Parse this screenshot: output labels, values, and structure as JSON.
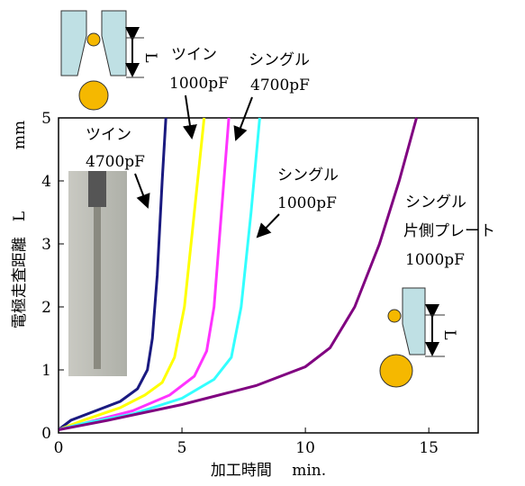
{
  "chart_data": {
    "type": "line",
    "x_label": "加工時間　 min.",
    "y_label": "電極走査距離　L",
    "y_unit": "mm",
    "diagram_label": "L",
    "xlim": [
      0,
      17
    ],
    "xticks": [
      0,
      5,
      10,
      15
    ],
    "ylim": [
      0,
      5
    ],
    "yticks": [
      0,
      1,
      2,
      3,
      4,
      5
    ],
    "annotations": [
      [
        "ツイン",
        "4700pF"
      ],
      [
        "ツイン",
        "1000pF"
      ],
      [
        "シングル",
        "4700pF"
      ],
      [
        "シングル",
        "1000pF"
      ],
      [
        "シングル",
        "片側プレート",
        "1000pF"
      ]
    ],
    "series": [
      {
        "color": "#1a1a80",
        "x": [
          0,
          0.5,
          1.5,
          2.5,
          3.2,
          3.6,
          3.8,
          4.0,
          4.2,
          4.35
        ],
        "values": [
          0.05,
          0.2,
          0.35,
          0.5,
          0.7,
          1.0,
          1.5,
          2.5,
          4,
          5
        ]
      },
      {
        "color": "#ffff00",
        "x": [
          0,
          1,
          2.5,
          3.5,
          4.2,
          4.7,
          5.1,
          5.5,
          5.9
        ],
        "values": [
          0.05,
          0.2,
          0.4,
          0.6,
          0.8,
          1.2,
          2,
          3.5,
          5
        ]
      },
      {
        "color": "#ff33ff",
        "x": [
          0,
          1,
          3,
          4.5,
          5.5,
          6,
          6.3,
          6.6,
          6.9
        ],
        "values": [
          0.05,
          0.15,
          0.35,
          0.6,
          0.9,
          1.3,
          2,
          3.5,
          5
        ]
      },
      {
        "color": "#33ffff",
        "x": [
          0,
          1,
          3,
          5,
          6.3,
          7,
          7.4,
          7.8,
          8.15
        ],
        "values": [
          0.05,
          0.15,
          0.3,
          0.55,
          0.85,
          1.2,
          2,
          3.5,
          5
        ]
      },
      {
        "color": "#800080",
        "x": [
          0,
          2,
          5,
          8,
          10,
          11,
          12,
          13,
          13.8,
          14.5
        ],
        "values": [
          0.05,
          0.2,
          0.45,
          0.75,
          1.05,
          1.35,
          2,
          3,
          4,
          5
        ]
      }
    ]
  }
}
